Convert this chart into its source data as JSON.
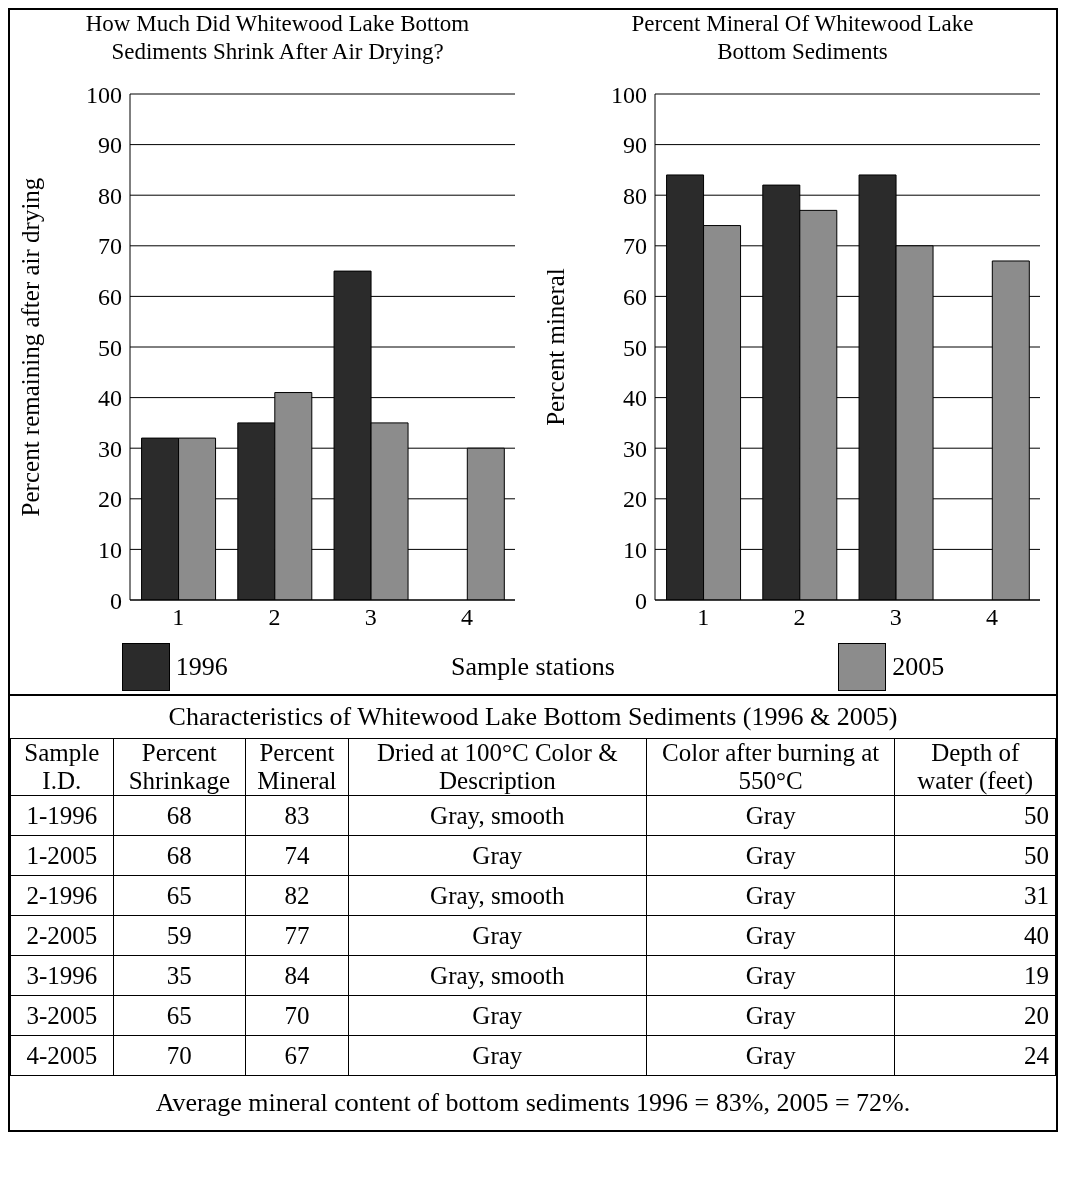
{
  "chart_data": [
    {
      "type": "bar",
      "title": "How Much Did Whitewood Lake Bottom Sediments Shrink After Air Drying?",
      "xlabel": "Sample stations",
      "ylabel": "Percent remaining after air drying",
      "categories": [
        "1",
        "2",
        "3",
        "4"
      ],
      "series": [
        {
          "name": "1996",
          "color": "#2b2b2b",
          "values": [
            32,
            35,
            65,
            null
          ]
        },
        {
          "name": "2005",
          "color": "#8c8c8c",
          "values": [
            32,
            41,
            35,
            30
          ]
        }
      ],
      "ylim": [
        0,
        100
      ],
      "yticks": [
        0,
        10,
        20,
        30,
        40,
        50,
        60,
        70,
        80,
        90,
        100
      ],
      "grid": "y",
      "legend": "bottom"
    },
    {
      "type": "bar",
      "title": "Percent Mineral Of Whitewood Lake Bottom Sediments",
      "ylabel": "Percent mineral",
      "categories": [
        "1",
        "2",
        "3",
        "4"
      ],
      "series": [
        {
          "color": "#2b2b2b",
          "values": [
            84,
            82,
            84,
            null
          ]
        },
        {
          "color": "#8c8c8c",
          "values": [
            74,
            77,
            70,
            67
          ]
        }
      ],
      "ylim": [
        0,
        100
      ],
      "yticks": [
        0,
        10,
        20,
        30,
        40,
        50,
        60,
        70,
        80,
        90,
        100
      ],
      "grid": "y"
    },
    {
      "type": "other",
      "title": "Characteristics of Whitewood Lake Bottom Sediments (1996 & 2005)",
      "categories": [
        "Sample I.D.",
        "Percent Shrinkage",
        "Percent Mineral",
        "Dried at 100°C Color & Description",
        "Color after burning at 550°C",
        "Depth of water (feet)"
      ],
      "y_categories": [
        "1-1996",
        "1-2005",
        "2-1996",
        "2-2005",
        "3-1996",
        "3-2005",
        "4-2005"
      ],
      "cell_labels": [
        [
          "68",
          "83",
          "Gray, smooth",
          "Gray",
          "50"
        ],
        [
          "68",
          "74",
          "Gray",
          "Gray",
          "50"
        ],
        [
          "65",
          "82",
          "Gray, smooth",
          "Gray",
          "31"
        ],
        [
          "59",
          "77",
          "Gray",
          "Gray",
          "40"
        ],
        [
          "35",
          "84",
          "Gray, smooth",
          "Gray",
          "19"
        ],
        [
          "65",
          "70",
          "Gray",
          "Gray",
          "20"
        ],
        [
          "70",
          "67",
          "Gray",
          "Gray",
          "24"
        ]
      ],
      "annotations": [
        "Average mineral content of bottom sediments 1996 = 83%, 2005 = 72%."
      ]
    }
  ]
}
